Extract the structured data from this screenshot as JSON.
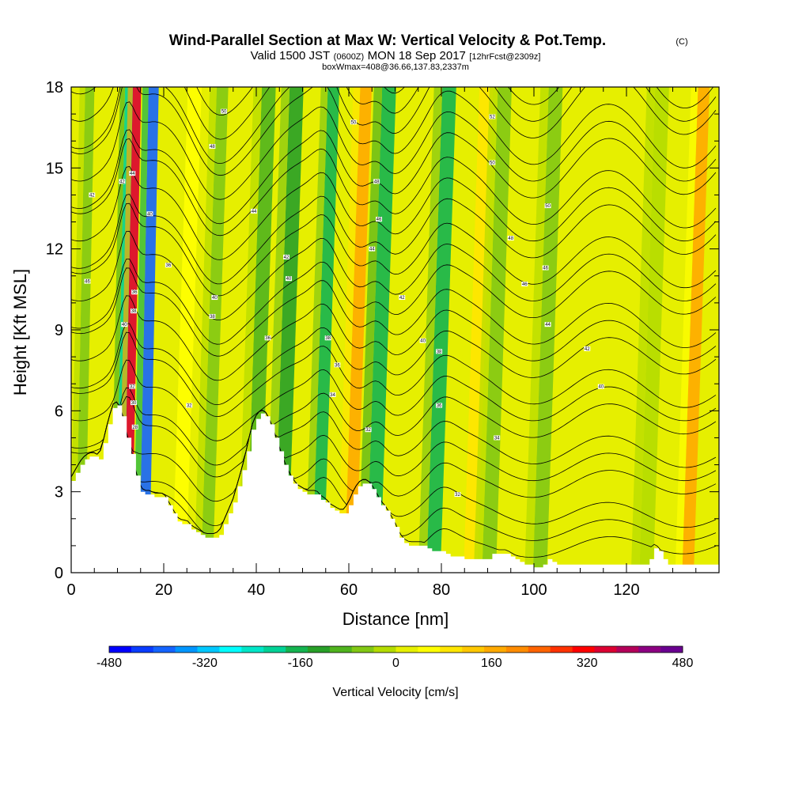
{
  "chart_data": {
    "type": "heatmap",
    "title": "Wind-Parallel Section at Max W: Vertical Velocity & Pot.Temp.",
    "copyright_mark": "(C)",
    "subtitle_parts": {
      "a": "Valid 1500 JST",
      "b": "(0600Z)",
      "c": "MON 18 Sep 2017",
      "d": "[12hrFcst@2309z]"
    },
    "subtitle2": "boxWmax=408@36.66,137.83,2337m",
    "xlabel": "Distance [nm]",
    "ylabel": "Height [Kft MSL]",
    "xlim": [
      0,
      140
    ],
    "ylim": [
      0,
      18
    ],
    "x_ticks": [
      "0",
      "20",
      "40",
      "60",
      "80",
      "100",
      "120"
    ],
    "y_ticks": [
      "0",
      "3",
      "6",
      "9",
      "12",
      "15",
      "18"
    ],
    "colorbar": {
      "title": "Vertical Velocity [cm/s]",
      "range": [
        -480,
        480
      ],
      "tick_labels": [
        "-480",
        "-320",
        "-160",
        "0",
        "160",
        "320",
        "480"
      ],
      "colors": [
        "#0000ff",
        "#0a3cff",
        "#1464ff",
        "#0096ff",
        "#00c8ff",
        "#00ffff",
        "#00e6c8",
        "#00d296",
        "#14b450",
        "#28a028",
        "#50b41e",
        "#82c814",
        "#b4dc00",
        "#e6f000",
        "#ffff00",
        "#ffe600",
        "#ffc800",
        "#ffaa00",
        "#ff8c00",
        "#ff6400",
        "#ff3200",
        "#ff0000",
        "#dc0032",
        "#b4005a",
        "#8c0082",
        "#6a0090"
      ]
    },
    "vertical_velocity_bands": [
      {
        "x": 3,
        "w": 2,
        "value": -60
      },
      {
        "x": 11.5,
        "w": 1.8,
        "value": -220
      },
      {
        "x": 13.2,
        "w": 1.8,
        "value": 360
      },
      {
        "x": 16.8,
        "w": 2.2,
        "value": -380
      },
      {
        "x": 25,
        "w": 3,
        "value": 60
      },
      {
        "x": 31,
        "w": 2.5,
        "value": -60
      },
      {
        "x": 41,
        "w": 3,
        "value": -80
      },
      {
        "x": 47,
        "w": 3,
        "value": -140
      },
      {
        "x": 55,
        "w": 2.5,
        "value": -160
      },
      {
        "x": 62,
        "w": 2.5,
        "value": 180
      },
      {
        "x": 67,
        "w": 3,
        "value": -180
      },
      {
        "x": 80,
        "w": 3,
        "value": -150
      },
      {
        "x": 88,
        "w": 3,
        "value": 80
      },
      {
        "x": 92,
        "w": 3,
        "value": -60
      },
      {
        "x": 103,
        "w": 3,
        "value": -40
      },
      {
        "x": 126,
        "w": 3,
        "value": -30
      },
      {
        "x": 135,
        "w": 2.5,
        "value": 150
      }
    ],
    "terrain_kft": [
      [
        0,
        3.4
      ],
      [
        1,
        3.7
      ],
      [
        2,
        4
      ],
      [
        3,
        4.2
      ],
      [
        4,
        4.3
      ],
      [
        5,
        4.3
      ],
      [
        6,
        4.2
      ],
      [
        7,
        4.8
      ],
      [
        8,
        5.5
      ],
      [
        9,
        6.1
      ],
      [
        10,
        6.2
      ],
      [
        11,
        5.8
      ],
      [
        12,
        5.0
      ],
      [
        13,
        4.4
      ],
      [
        14,
        3.6
      ],
      [
        15,
        3.0
      ],
      [
        16,
        2.9
      ],
      [
        17,
        2.9
      ],
      [
        18,
        2.8
      ],
      [
        19,
        2.8
      ],
      [
        20,
        2.8
      ],
      [
        21,
        2.5
      ],
      [
        22,
        2.2
      ],
      [
        23,
        1.9
      ],
      [
        24,
        1.8
      ],
      [
        25,
        1.8
      ],
      [
        26,
        1.6
      ],
      [
        27,
        1.5
      ],
      [
        28,
        1.4
      ],
      [
        29,
        1.3
      ],
      [
        30,
        1.3
      ],
      [
        31,
        1.3
      ],
      [
        32,
        1.4
      ],
      [
        33,
        1.8
      ],
      [
        34,
        2.2
      ],
      [
        35,
        2.6
      ],
      [
        36,
        3.2
      ],
      [
        37,
        3.8
      ],
      [
        38,
        4.5
      ],
      [
        39,
        5.3
      ],
      [
        40,
        5.7
      ],
      [
        41,
        5.9
      ],
      [
        42,
        5.8
      ],
      [
        43,
        5.5
      ],
      [
        44,
        5.0
      ],
      [
        45,
        4.5
      ],
      [
        46,
        4.0
      ],
      [
        47,
        3.6
      ],
      [
        48,
        3.3
      ],
      [
        49,
        3.1
      ],
      [
        50,
        3.0
      ],
      [
        51,
        2.9
      ],
      [
        52,
        2.9
      ],
      [
        53,
        2.9
      ],
      [
        54,
        2.7
      ],
      [
        55,
        2.6
      ],
      [
        56,
        2.4
      ],
      [
        57,
        2.3
      ],
      [
        58,
        2.2
      ],
      [
        59,
        2.2
      ],
      [
        60,
        2.5
      ],
      [
        61,
        2.9
      ],
      [
        62,
        3.2
      ],
      [
        63,
        3.3
      ],
      [
        64,
        3.3
      ],
      [
        65,
        3.1
      ],
      [
        66,
        2.8
      ],
      [
        67,
        2.5
      ],
      [
        68,
        2.3
      ],
      [
        69,
        2.0
      ],
      [
        70,
        1.7
      ],
      [
        71,
        1.3
      ],
      [
        72,
        1.1
      ],
      [
        73,
        1.0
      ],
      [
        74,
        1.0
      ],
      [
        75,
        1.0
      ],
      [
        76,
        1.0
      ],
      [
        77,
        0.9
      ],
      [
        78,
        0.8
      ],
      [
        79,
        0.8
      ],
      [
        80,
        0.8
      ],
      [
        81,
        0.7
      ],
      [
        82,
        0.6
      ],
      [
        83,
        0.6
      ],
      [
        84,
        0.6
      ],
      [
        85,
        0.5
      ],
      [
        86,
        0.5
      ],
      [
        87,
        0.5
      ],
      [
        88,
        0.5
      ],
      [
        89,
        0.5
      ],
      [
        90,
        0.5
      ],
      [
        91,
        0.7
      ],
      [
        92,
        0.7
      ],
      [
        93,
        0.7
      ],
      [
        94,
        0.7
      ],
      [
        95,
        0.6
      ],
      [
        96,
        0.5
      ],
      [
        97,
        0.4
      ],
      [
        98,
        0.3
      ],
      [
        99,
        0.3
      ],
      [
        100,
        0.2
      ],
      [
        101,
        0.2
      ],
      [
        102,
        0.3
      ],
      [
        103,
        0.5
      ],
      [
        104,
        0.4
      ],
      [
        105,
        0.3
      ],
      [
        106,
        0.3
      ],
      [
        107,
        0.3
      ],
      [
        108,
        0.3
      ],
      [
        109,
        0.3
      ],
      [
        110,
        0.3
      ],
      [
        111,
        0.3
      ],
      [
        112,
        0.3
      ],
      [
        113,
        0.3
      ],
      [
        114,
        0.3
      ],
      [
        115,
        0.3
      ],
      [
        116,
        0.3
      ],
      [
        117,
        0.3
      ],
      [
        118,
        0.3
      ],
      [
        119,
        0.3
      ],
      [
        120,
        0.3
      ],
      [
        121,
        0.3
      ],
      [
        122,
        0.3
      ],
      [
        123,
        0.3
      ],
      [
        124,
        0.3
      ],
      [
        125,
        0.5
      ],
      [
        126,
        0.9
      ],
      [
        127,
        0.8
      ],
      [
        128,
        0.5
      ],
      [
        129,
        0.3
      ],
      [
        130,
        0.3
      ],
      [
        131,
        0.3
      ],
      [
        132,
        0.3
      ],
      [
        133,
        0.3
      ],
      [
        134,
        0.3
      ],
      [
        135,
        0.3
      ],
      [
        136,
        0.3
      ],
      [
        137,
        0.3
      ],
      [
        138,
        0.3
      ],
      [
        139,
        0.3
      ]
    ],
    "contour_labels": [
      {
        "x": 3.5,
        "y": 10.8,
        "text": "46"
      },
      {
        "x": 4.5,
        "y": 14.0,
        "text": "42"
      },
      {
        "x": 11.0,
        "y": 14.5,
        "text": "42"
      },
      {
        "x": 11.5,
        "y": 9.2,
        "text": "40"
      },
      {
        "x": 13.5,
        "y": 9.7,
        "text": "38"
      },
      {
        "x": 13.7,
        "y": 10.4,
        "text": "36"
      },
      {
        "x": 13.2,
        "y": 6.9,
        "text": "32"
      },
      {
        "x": 13.5,
        "y": 6.3,
        "text": "30"
      },
      {
        "x": 13.8,
        "y": 5.4,
        "text": "28"
      },
      {
        "x": 13.2,
        "y": 14.8,
        "text": "44"
      },
      {
        "x": 17.0,
        "y": 13.3,
        "text": "40"
      },
      {
        "x": 21.0,
        "y": 11.4,
        "text": "36"
      },
      {
        "x": 25.5,
        "y": 6.2,
        "text": "32"
      },
      {
        "x": 30.5,
        "y": 15.8,
        "text": "48"
      },
      {
        "x": 33.0,
        "y": 17.1,
        "text": "50"
      },
      {
        "x": 31.0,
        "y": 10.2,
        "text": "40"
      },
      {
        "x": 30.5,
        "y": 9.5,
        "text": "38"
      },
      {
        "x": 39.5,
        "y": 13.4,
        "text": "44"
      },
      {
        "x": 42.5,
        "y": 8.7,
        "text": "36"
      },
      {
        "x": 46.5,
        "y": 11.7,
        "text": "42"
      },
      {
        "x": 47.0,
        "y": 10.9,
        "text": "40"
      },
      {
        "x": 55.5,
        "y": 8.7,
        "text": "38"
      },
      {
        "x": 57.5,
        "y": 7.7,
        "text": "36"
      },
      {
        "x": 56.5,
        "y": 6.6,
        "text": "34"
      },
      {
        "x": 61.0,
        "y": 16.7,
        "text": "50"
      },
      {
        "x": 66.0,
        "y": 14.5,
        "text": "48"
      },
      {
        "x": 66.5,
        "y": 13.1,
        "text": "46"
      },
      {
        "x": 65.0,
        "y": 12.0,
        "text": "44"
      },
      {
        "x": 64.2,
        "y": 5.3,
        "text": "32"
      },
      {
        "x": 71.5,
        "y": 10.2,
        "text": "42"
      },
      {
        "x": 76.0,
        "y": 8.6,
        "text": "40"
      },
      {
        "x": 79.5,
        "y": 8.2,
        "text": "38"
      },
      {
        "x": 79.5,
        "y": 6.2,
        "text": "36"
      },
      {
        "x": 83.5,
        "y": 2.9,
        "text": "32"
      },
      {
        "x": 91.0,
        "y": 16.9,
        "text": "52"
      },
      {
        "x": 91.0,
        "y": 15.2,
        "text": "50"
      },
      {
        "x": 95.0,
        "y": 12.4,
        "text": "48"
      },
      {
        "x": 98.0,
        "y": 10.7,
        "text": "46"
      },
      {
        "x": 103.0,
        "y": 13.6,
        "text": "50"
      },
      {
        "x": 102.5,
        "y": 11.3,
        "text": "46"
      },
      {
        "x": 103.0,
        "y": 9.2,
        "text": "44"
      },
      {
        "x": 92.0,
        "y": 5.0,
        "text": "34"
      },
      {
        "x": 111.5,
        "y": 8.3,
        "text": "42"
      },
      {
        "x": 114.5,
        "y": 6.9,
        "text": "40"
      }
    ]
  }
}
